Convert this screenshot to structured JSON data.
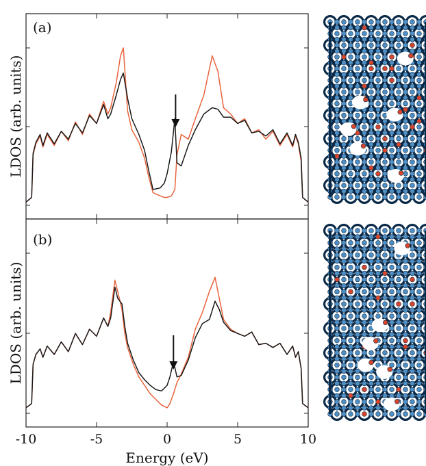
{
  "figure": {
    "xlabel": "Energy (eV)",
    "ylabel": "LDOS (arb. units)"
  },
  "colors": {
    "black_series": "#1a1a1a",
    "orange_series": "#e8643c",
    "atom_blue": "#4f8fc4",
    "bond_dark": "#0b2a48",
    "atom_red": "#d9452b"
  },
  "chart_data": [
    {
      "type": "line",
      "panel_label": "(a)",
      "xlim": [
        -10,
        10
      ],
      "ylim": [
        0,
        1
      ],
      "xticks": [
        -10,
        -5,
        0,
        5,
        10
      ],
      "annotation": "arrow at ~0.6 eV pointing to peak in black curve",
      "series": [
        {
          "color": "black",
          "x": [
            -10,
            -9.6,
            -9.5,
            -9.3,
            -9.0,
            -8.8,
            -8.5,
            -8.0,
            -7.5,
            -7.0,
            -6.5,
            -6.0,
            -5.5,
            -5.0,
            -4.5,
            -4.2,
            -4.0,
            -3.6,
            -3.3,
            -3.1,
            -2.8,
            -2.5,
            -2.0,
            -1.6,
            -1.3,
            -1.0,
            -0.5,
            -0.2,
            0.0,
            0.3,
            0.55,
            0.7,
            1.0,
            1.5,
            2.0,
            2.6,
            3.2,
            3.6,
            4.0,
            4.5,
            5.0,
            5.5,
            6.0,
            6.5,
            7.0,
            7.5,
            8.0,
            8.5,
            8.9,
            9.1,
            9.3,
            9.5,
            9.6,
            10
          ],
          "y": [
            0.02,
            0.05,
            0.33,
            0.4,
            0.45,
            0.38,
            0.46,
            0.39,
            0.47,
            0.42,
            0.52,
            0.46,
            0.57,
            0.52,
            0.64,
            0.55,
            0.58,
            0.7,
            0.8,
            0.84,
            0.68,
            0.55,
            0.45,
            0.35,
            0.22,
            0.1,
            0.11,
            0.14,
            0.2,
            0.34,
            0.55,
            0.27,
            0.25,
            0.38,
            0.48,
            0.58,
            0.62,
            0.61,
            0.56,
            0.56,
            0.52,
            0.54,
            0.46,
            0.47,
            0.44,
            0.48,
            0.39,
            0.46,
            0.38,
            0.45,
            0.4,
            0.3,
            0.05,
            0.02
          ]
        },
        {
          "color": "orange",
          "x": [
            -10,
            -9.6,
            -9.5,
            -9.3,
            -9.0,
            -8.8,
            -8.5,
            -8.0,
            -7.5,
            -7.0,
            -6.5,
            -6.0,
            -5.5,
            -5.0,
            -4.5,
            -4.2,
            -4.0,
            -3.6,
            -3.3,
            -3.1,
            -2.8,
            -2.5,
            -2.0,
            -1.6,
            -1.3,
            -1.0,
            -0.5,
            -0.2,
            0.0,
            0.3,
            0.55,
            0.7,
            1.0,
            1.5,
            2.0,
            2.6,
            3.2,
            3.6,
            4.0,
            4.5,
            5.0,
            5.5,
            6.0,
            6.5,
            7.0,
            7.5,
            8.0,
            8.5,
            8.9,
            9.1,
            9.3,
            9.5,
            9.6,
            10
          ],
          "y": [
            0.02,
            0.05,
            0.32,
            0.39,
            0.44,
            0.37,
            0.45,
            0.38,
            0.47,
            0.41,
            0.53,
            0.45,
            0.58,
            0.52,
            0.66,
            0.58,
            0.62,
            0.78,
            0.95,
            1.0,
            0.6,
            0.48,
            0.4,
            0.3,
            0.18,
            0.08,
            0.06,
            0.05,
            0.05,
            0.06,
            0.1,
            0.32,
            0.45,
            0.42,
            0.55,
            0.7,
            0.95,
            0.85,
            0.62,
            0.58,
            0.52,
            0.55,
            0.46,
            0.48,
            0.42,
            0.47,
            0.38,
            0.45,
            0.37,
            0.44,
            0.39,
            0.28,
            0.05,
            0.02
          ]
        }
      ]
    },
    {
      "type": "line",
      "panel_label": "(b)",
      "xlim": [
        -10,
        10
      ],
      "ylim": [
        0,
        1
      ],
      "xticks": [
        -10,
        -5,
        0,
        5,
        10
      ],
      "annotation": "arrow at ~0.4 eV pointing to peak in black curve",
      "series": [
        {
          "color": "black",
          "x": [
            -10,
            -9.6,
            -9.5,
            -9.3,
            -9.0,
            -8.8,
            -8.5,
            -8.0,
            -7.5,
            -7.0,
            -6.5,
            -6.0,
            -5.5,
            -5.0,
            -4.5,
            -4.2,
            -4.0,
            -3.7,
            -3.5,
            -3.2,
            -3.0,
            -2.8,
            -2.4,
            -2.0,
            -1.6,
            -1.2,
            -0.8,
            -0.4,
            0.0,
            0.2,
            0.45,
            0.7,
            1.0,
            1.5,
            2.0,
            2.5,
            3.0,
            3.4,
            3.7,
            4.0,
            4.5,
            5.0,
            5.5,
            6.0,
            6.5,
            7.0,
            7.5,
            8.0,
            8.5,
            8.9,
            9.1,
            9.3,
            9.5,
            9.6,
            10
          ],
          "y": [
            0.02,
            0.05,
            0.33,
            0.4,
            0.44,
            0.38,
            0.46,
            0.4,
            0.49,
            0.42,
            0.55,
            0.47,
            0.58,
            0.53,
            0.66,
            0.6,
            0.66,
            0.88,
            0.8,
            0.76,
            0.6,
            0.48,
            0.36,
            0.27,
            0.22,
            0.18,
            0.15,
            0.14,
            0.18,
            0.24,
            0.35,
            0.24,
            0.25,
            0.36,
            0.52,
            0.62,
            0.65,
            0.78,
            0.72,
            0.63,
            0.57,
            0.55,
            0.53,
            0.56,
            0.47,
            0.48,
            0.45,
            0.48,
            0.4,
            0.46,
            0.38,
            0.42,
            0.3,
            0.05,
            0.02
          ]
        },
        {
          "color": "orange",
          "x": [
            -10,
            -9.6,
            -9.5,
            -9.3,
            -9.0,
            -8.8,
            -8.5,
            -8.0,
            -7.5,
            -7.0,
            -6.5,
            -6.0,
            -5.5,
            -5.0,
            -4.5,
            -4.2,
            -4.0,
            -3.7,
            -3.5,
            -3.2,
            -3.0,
            -2.8,
            -2.4,
            -2.0,
            -1.6,
            -1.2,
            -0.8,
            -0.4,
            0.0,
            0.2,
            0.45,
            0.7,
            1.0,
            1.5,
            2.0,
            2.5,
            3.0,
            3.4,
            3.7,
            4.0,
            4.5,
            5.0,
            5.5,
            6.0,
            6.5,
            7.0,
            7.5,
            8.0,
            8.5,
            8.9,
            9.1,
            9.3,
            9.5,
            9.6,
            10
          ],
          "y": [
            0.02,
            0.05,
            0.33,
            0.4,
            0.44,
            0.38,
            0.46,
            0.4,
            0.49,
            0.42,
            0.55,
            0.47,
            0.58,
            0.53,
            0.66,
            0.6,
            0.7,
            0.93,
            0.85,
            0.72,
            0.55,
            0.45,
            0.33,
            0.24,
            0.18,
            0.12,
            0.08,
            0.04,
            0.02,
            0.05,
            0.12,
            0.2,
            0.26,
            0.38,
            0.58,
            0.7,
            0.85,
            0.95,
            0.8,
            0.65,
            0.58,
            0.55,
            0.53,
            0.56,
            0.47,
            0.48,
            0.45,
            0.48,
            0.4,
            0.46,
            0.38,
            0.42,
            0.3,
            0.05,
            0.02
          ]
        }
      ]
    }
  ]
}
